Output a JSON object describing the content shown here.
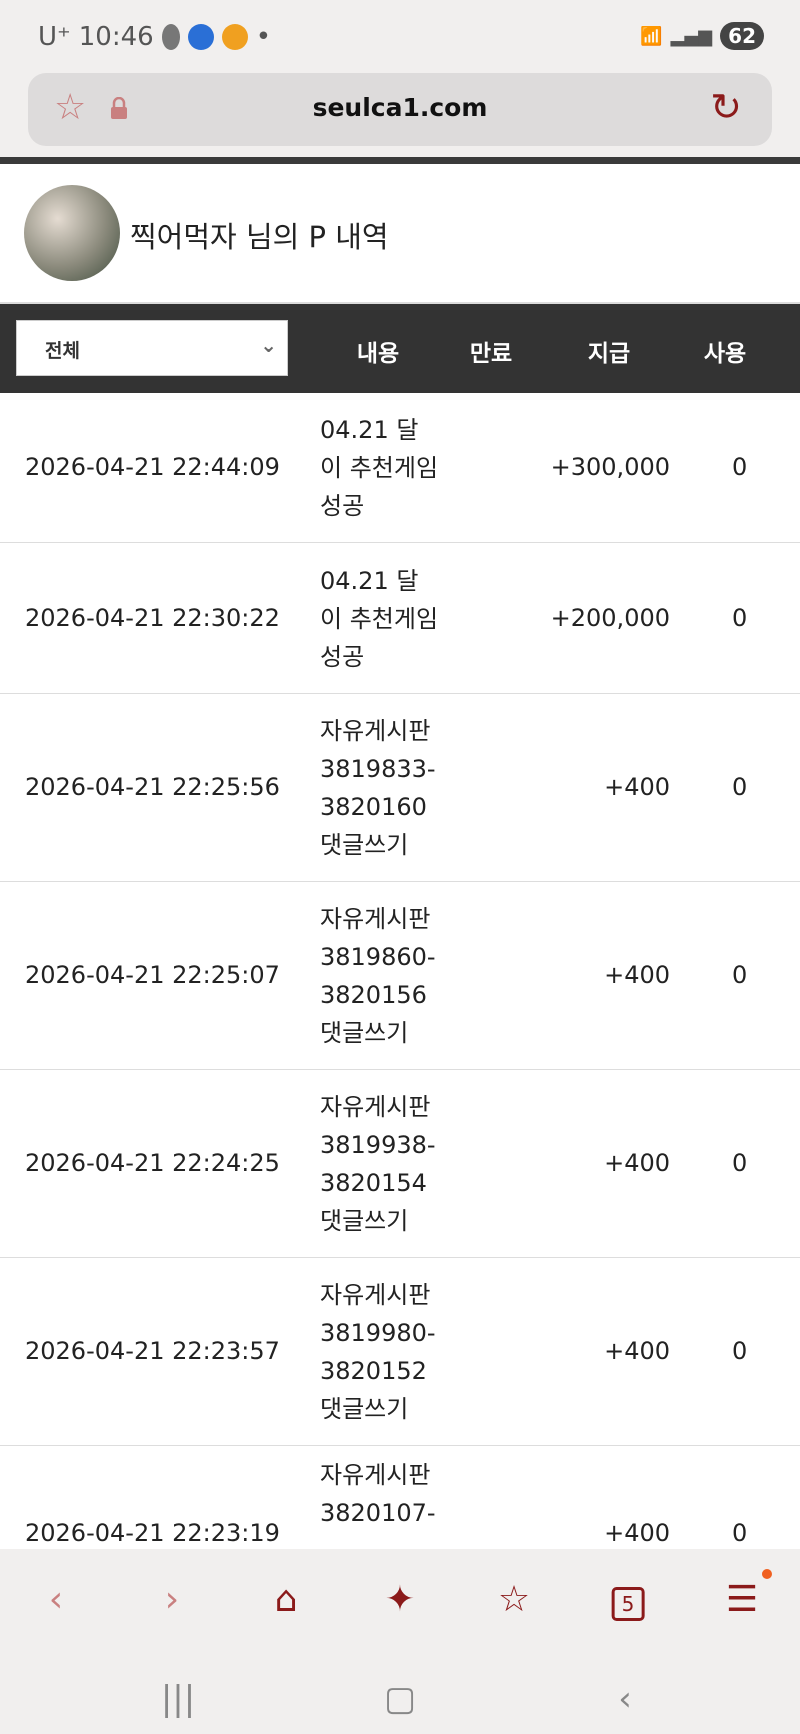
{
  "status_bar": {
    "carrier": "U⁺",
    "time": "10:46",
    "battery": "62"
  },
  "browser": {
    "url": "seulca1.com",
    "tab_count": "5"
  },
  "profile": {
    "title": "찍어먹자 님의 P 내역"
  },
  "table": {
    "filter": "전체",
    "headers": [
      "내용",
      "만료",
      "지급",
      "사용"
    ],
    "rows": [
      {
        "date": "2026-04-21 22:44:09",
        "desc": "04.21 달이 추천게임 성공",
        "given": "+300,000",
        "used": "0"
      },
      {
        "date": "2026-04-21 22:30:22",
        "desc": "04.21 달이 추천게임 성공",
        "given": "+200,000",
        "used": "0"
      },
      {
        "date": "2026-04-21 22:25:56",
        "desc": "자유게시판 3819833-3820160 댓글쓰기",
        "given": "+400",
        "used": "0"
      },
      {
        "date": "2026-04-21 22:25:07",
        "desc": "자유게시판 3819860-3820156 댓글쓰기",
        "given": "+400",
        "used": "0"
      },
      {
        "date": "2026-04-21 22:24:25",
        "desc": "자유게시판 3819938-3820154 댓글쓰기",
        "given": "+400",
        "used": "0"
      },
      {
        "date": "2026-04-21 22:23:57",
        "desc": "자유게시판 3819980-3820152 댓글쓰기",
        "given": "+400",
        "used": "0"
      },
      {
        "date": "2026-04-21 22:23:19",
        "desc": "자유게시판 3820107-",
        "given": "+400",
        "used": "0"
      }
    ]
  },
  "colors": {
    "accent": "#8b1a1a",
    "header_bg": "#333333"
  }
}
